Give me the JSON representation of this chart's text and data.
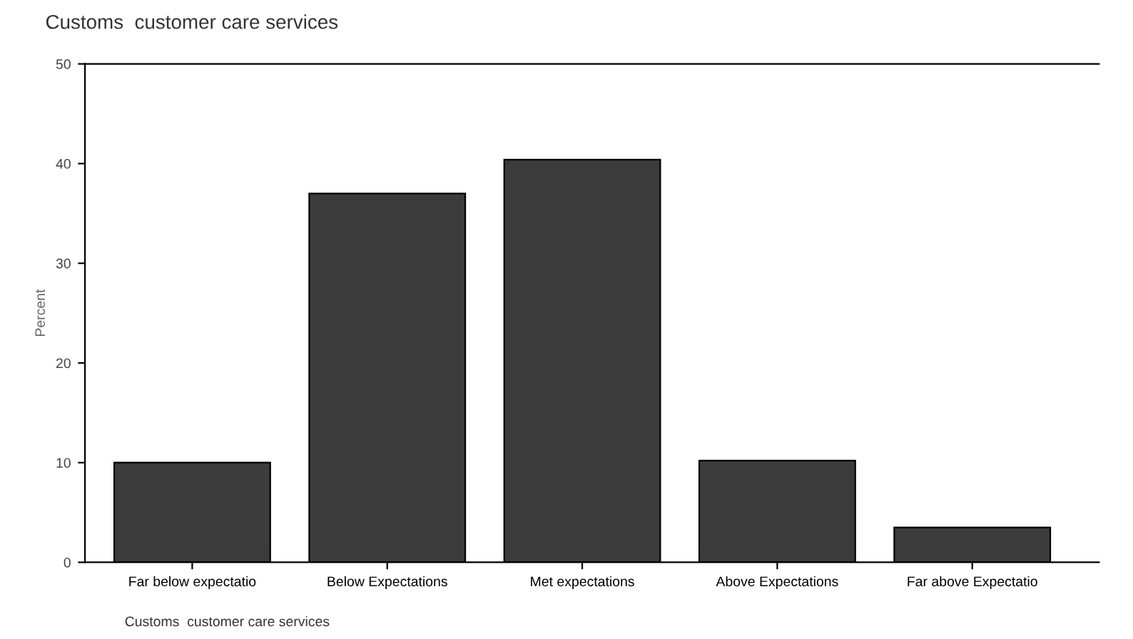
{
  "chart_data": {
    "type": "bar",
    "title": "Customs  customer care services",
    "categories": [
      "Far below expectatio",
      "Below Expectations",
      "Met expectations",
      "Above Expectations",
      "Far above Expectatio"
    ],
    "values": [
      10.0,
      37.0,
      40.4,
      10.2,
      3.5
    ],
    "color": "#3c3c3c",
    "ylabel": "Percent",
    "ylim": [
      0,
      50
    ],
    "yticks": [
      0,
      10,
      20,
      30,
      40,
      50
    ],
    "grid": false,
    "legend": false,
    "annotations": [
      "Customs  customer care services"
    ]
  }
}
